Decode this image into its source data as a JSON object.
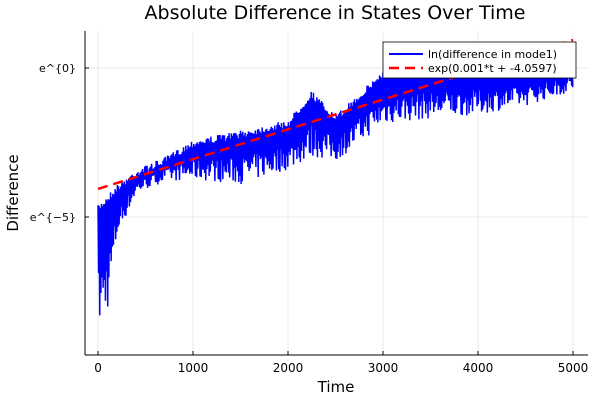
{
  "chart_data": {
    "type": "line",
    "title": "Absolute Difference in States Over Time",
    "xlabel": "Time",
    "ylabel": "Difference",
    "xlim": [
      -137,
      5158
    ],
    "ylim": [
      -9.63,
      1.24
    ],
    "y_scale": "natural log (values shown as exponents)",
    "xticks": [
      0,
      1000,
      2000,
      3000,
      4000,
      5000
    ],
    "xtick_labels": [
      "0",
      "1000",
      "2000",
      "3000",
      "4000",
      "5000"
    ],
    "yticks": [
      0,
      -5
    ],
    "ytick_labels": [
      "e^{0}",
      "e^{−5}"
    ],
    "grid": true,
    "legend_position": "top-right",
    "series": [
      {
        "name": "ln(difference in mode1)",
        "color": "#0000ff",
        "style": "solid oscillating",
        "envelope": {
          "t": [
            0,
            100,
            200,
            400,
            700,
            1000,
            1500,
            2000,
            2250,
            2500,
            3000,
            3500,
            4000,
            4500,
            5000
          ],
          "upper": [
            -4.6,
            -4.26,
            -3.9,
            -3.4,
            -3.0,
            -2.4,
            -2.1,
            -1.75,
            -0.75,
            -1.6,
            -0.07,
            0.1,
            0.1,
            0.0,
            0.27
          ],
          "lower": [
            -9.3,
            -8.5,
            -5.8,
            -4.3,
            -3.9,
            -3.9,
            -4.1,
            -3.6,
            -3.25,
            -3.3,
            -2.1,
            -1.9,
            -1.75,
            -1.4,
            -0.9
          ]
        }
      },
      {
        "name": "exp(0.001*t + -4.0597)",
        "color": "#ff0000",
        "style": "dashed",
        "slope": 0.001,
        "intercept": -4.0597
      }
    ]
  }
}
